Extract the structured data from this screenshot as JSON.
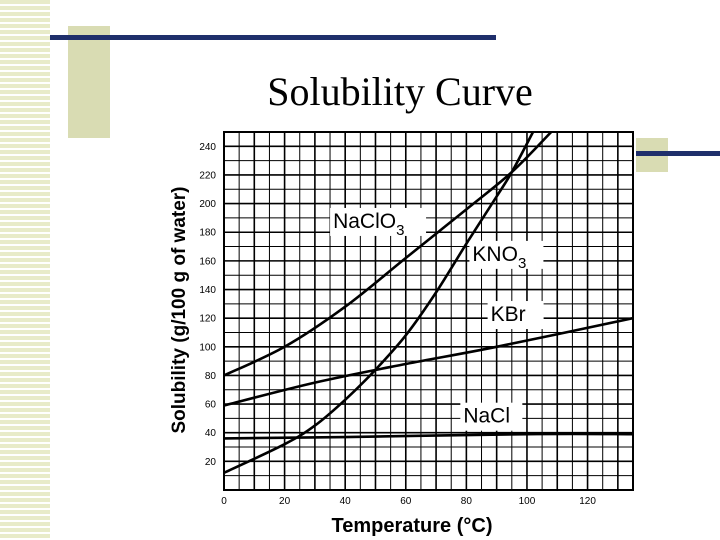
{
  "slide": {
    "title": "Solubility Curve",
    "colors": {
      "accent_navy": "#1f2f6b",
      "accent_olive": "#d9dcb3",
      "stripe": "#e8ebc9"
    }
  },
  "chart_data": {
    "type": "line",
    "xlabel": "Temperature (°C)",
    "ylabel": "Solubility (g/100 g of water)",
    "xlim": [
      0,
      135
    ],
    "ylim": [
      0,
      250
    ],
    "grid": true,
    "x_ticks": [
      0,
      20,
      40,
      60,
      80,
      100,
      120
    ],
    "y_ticks": [
      20,
      40,
      60,
      80,
      100,
      120,
      140,
      160,
      180,
      200,
      220,
      240
    ],
    "series": [
      {
        "name": "NaClO3",
        "label_sub": "3",
        "label_base": "NaClO",
        "points": [
          [
            0,
            80
          ],
          [
            20,
            100
          ],
          [
            40,
            128
          ],
          [
            60,
            162
          ],
          [
            80,
            196
          ],
          [
            95,
            222
          ],
          [
            108,
            250
          ]
        ]
      },
      {
        "name": "KNO3",
        "label_sub": "3",
        "label_base": "KNO",
        "points": [
          [
            0,
            12
          ],
          [
            20,
            32
          ],
          [
            30,
            45
          ],
          [
            40,
            63
          ],
          [
            50,
            84
          ],
          [
            60,
            108
          ],
          [
            70,
            138
          ],
          [
            80,
            172
          ],
          [
            90,
            205
          ],
          [
            95,
            222
          ],
          [
            102,
            250
          ]
        ]
      },
      {
        "name": "KBr",
        "label_sub": "",
        "label_base": "KBr",
        "points": [
          [
            0,
            59
          ],
          [
            30,
            75
          ],
          [
            60,
            88
          ],
          [
            90,
            100
          ],
          [
            135,
            120
          ]
        ]
      },
      {
        "name": "NaCl",
        "label_sub": "",
        "label_base": "NaCl",
        "points": [
          [
            0,
            36
          ],
          [
            40,
            37
          ],
          [
            100,
            39
          ],
          [
            135,
            39
          ]
        ]
      }
    ]
  }
}
